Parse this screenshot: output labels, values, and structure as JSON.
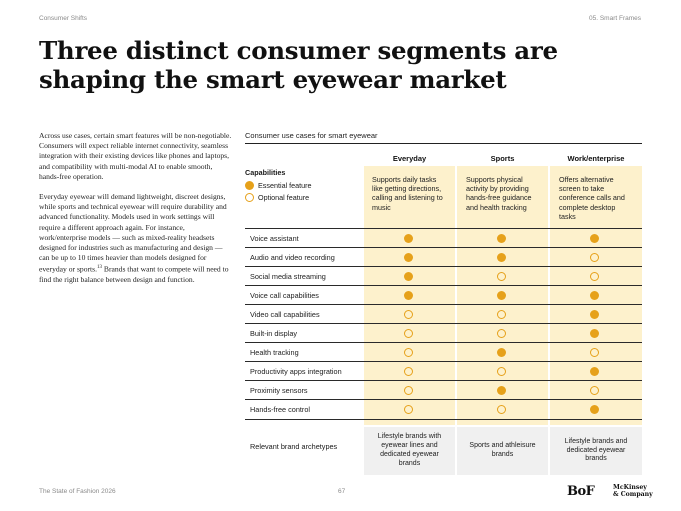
{
  "header": {
    "section": "Consumer Shifts",
    "chapter": "05. Smart Frames"
  },
  "title": "Three distinct consumer segments are shaping the smart eyewear market",
  "body": {
    "p1": "Across use cases, certain smart features will be non-negotiable. Consumers will expect reliable internet connectivity, seamless integration with their existing devices like phones and laptops, and compatibility with multi-modal AI to enable smooth, hands-free operation.",
    "p2_before": "Everyday eyewear will demand lightweight, discreet designs, while sports and technical eyewear will require durability and advanced functionality. Models used in work settings will require a different approach again. For instance, work/enterprise models — such as mixed-reality headsets designed for industries such as manufacturing and design — can be up to 10 times heavier than models designed for everyday or sports.",
    "p2_ref": "13",
    "p2_after": " Brands that want to compete will need to find the right balance between design and function."
  },
  "table": {
    "title": "Consumer use cases for smart eyewear",
    "capabilities_label": "Capabilities",
    "legend": {
      "essential": "Essential feature",
      "optional": "Optional feature"
    },
    "columns": [
      {
        "name": "Everyday",
        "description": "Supports daily tasks like getting directions, calling and listening to music"
      },
      {
        "name": "Sports",
        "description": "Supports physical activity by providing hands-free guidance and health tracking"
      },
      {
        "name": "Work/enterprise",
        "description": "Offers alternative screen to take conference calls and complete desktop tasks"
      }
    ],
    "rows": [
      {
        "label": "Voice assistant",
        "values": [
          "essential",
          "essential",
          "essential"
        ]
      },
      {
        "label": "Audio and video recording",
        "values": [
          "essential",
          "essential",
          "optional"
        ]
      },
      {
        "label": "Social media streaming",
        "values": [
          "essential",
          "optional",
          "optional"
        ]
      },
      {
        "label": "Voice call capabilities",
        "values": [
          "essential",
          "essential",
          "essential"
        ]
      },
      {
        "label": "Video call capabilities",
        "values": [
          "optional",
          "optional",
          "essential"
        ]
      },
      {
        "label": "Built-in display",
        "values": [
          "optional",
          "optional",
          "essential"
        ]
      },
      {
        "label": "Health tracking",
        "values": [
          "optional",
          "essential",
          "optional"
        ]
      },
      {
        "label": "Productivity apps integration",
        "values": [
          "optional",
          "optional",
          "essential"
        ]
      },
      {
        "label": "Proximity sensors",
        "values": [
          "optional",
          "essential",
          "optional"
        ]
      },
      {
        "label": "Hands-free control",
        "values": [
          "optional",
          "optional",
          "essential"
        ]
      }
    ],
    "archetypes": {
      "label": "Relevant brand archetypes",
      "values": [
        "Lifestyle brands with eyewear lines and dedicated eyewear brands",
        "Sports and athleisure brands",
        "Lifestyle brands and dedicated eyewear brands"
      ]
    }
  },
  "footer": {
    "report": "The State of Fashion 2026",
    "page": "67"
  },
  "logos": {
    "bof": "BoF",
    "mckinsey_line1": "McKinsey",
    "mckinsey_line2": "& Company"
  },
  "colors": {
    "accent": "#e6a11a",
    "column_bg": "#fdf1cc",
    "archetype_bg": "#f0f0f0"
  }
}
